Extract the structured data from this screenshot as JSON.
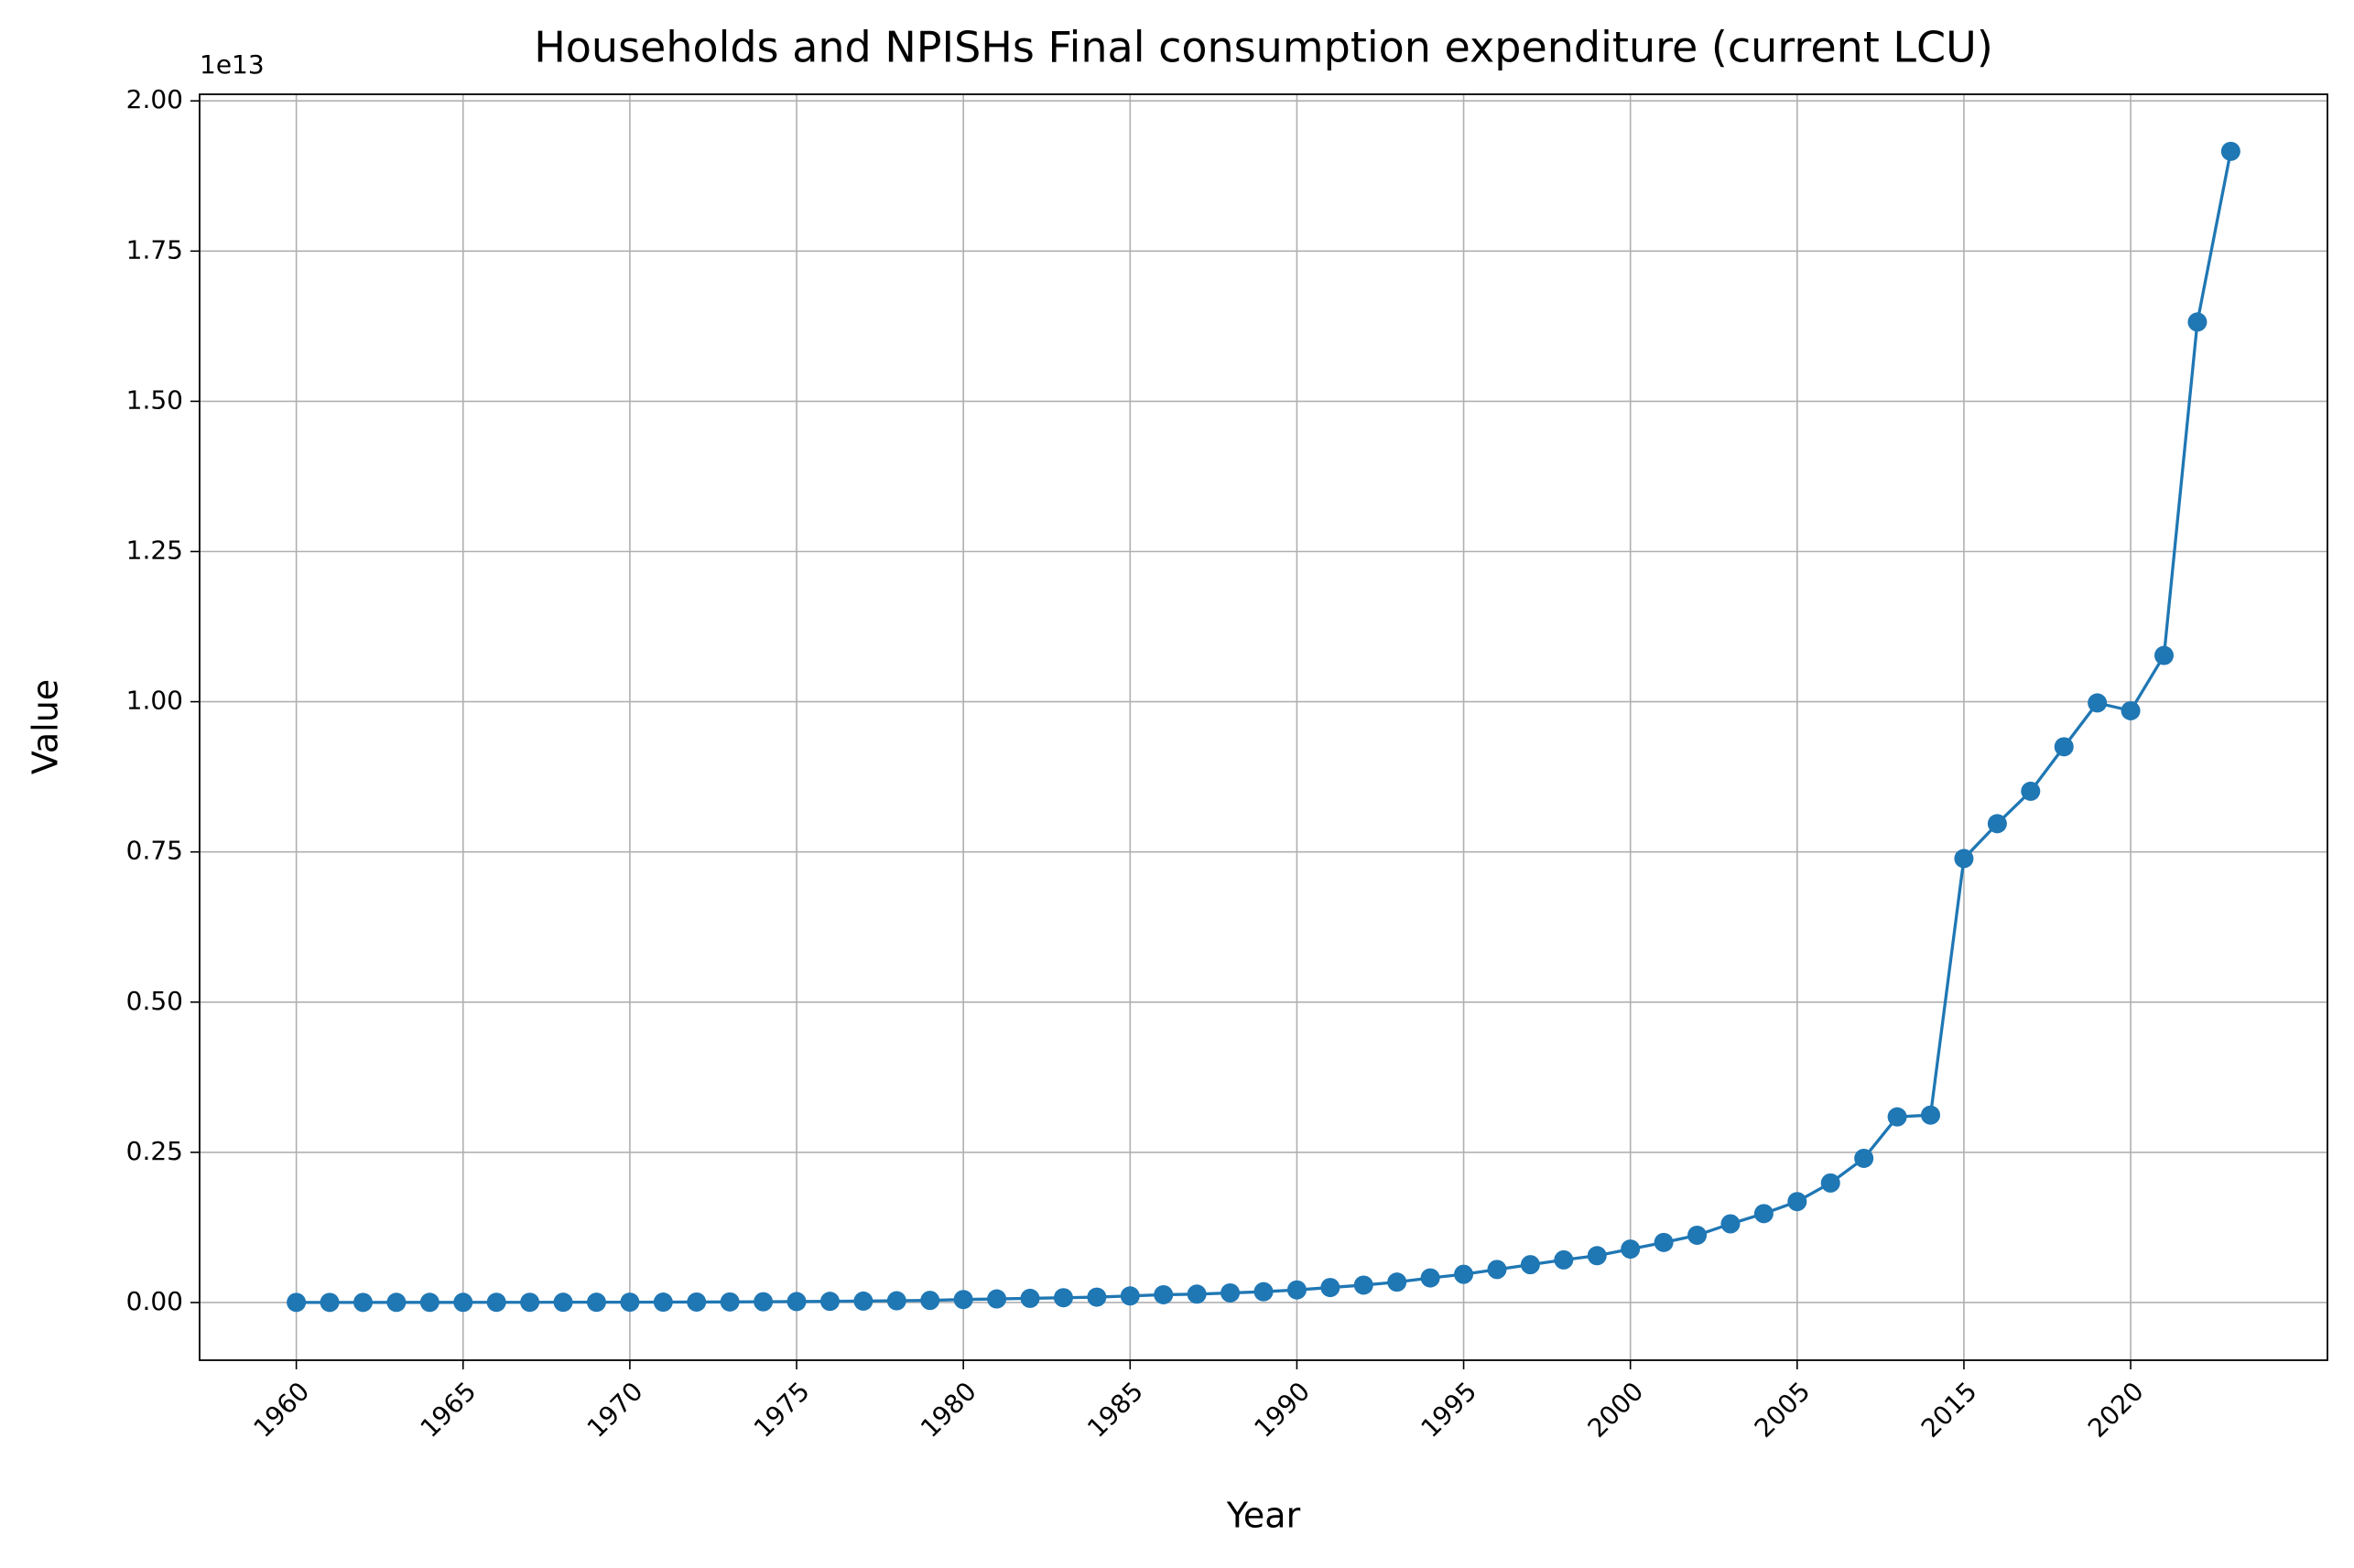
{
  "chart_data": {
    "type": "line",
    "title": "Households and NPISHs Final consumption expenditure (current LCU)",
    "x_label": "Year",
    "y_label": "Value",
    "y_offset_label": "1e13",
    "categories": [
      "1960",
      null,
      null,
      null,
      null,
      "1965",
      null,
      null,
      null,
      null,
      "1970",
      null,
      null,
      null,
      null,
      "1975",
      null,
      null,
      null,
      null,
      "1980",
      null,
      null,
      null,
      null,
      "1985",
      null,
      null,
      null,
      null,
      "1990",
      null,
      null,
      null,
      null,
      "1995",
      null,
      null,
      null,
      null,
      "2000",
      null,
      null,
      null,
      null,
      "2005",
      null,
      null,
      null,
      null,
      "2015",
      null,
      null,
      null,
      null,
      "2020",
      null,
      null,
      null
    ],
    "series": [
      {
        "name": "Value",
        "color": "#1f77b4",
        "values": [
          0.0002,
          0.0002,
          0.0002,
          0.0003,
          0.0003,
          0.0003,
          0.0004,
          0.0004,
          0.0005,
          0.0005,
          0.0006,
          0.0007,
          0.0008,
          0.001,
          0.0013,
          0.0016,
          0.002,
          0.0024,
          0.003,
          0.0036,
          0.005,
          0.006,
          0.007,
          0.008,
          0.009,
          0.011,
          0.013,
          0.014,
          0.016,
          0.018,
          0.021,
          0.025,
          0.029,
          0.034,
          0.041,
          0.047,
          0.055,
          0.063,
          0.071,
          0.078,
          0.089,
          0.1,
          0.112,
          0.131,
          0.148,
          0.168,
          0.199,
          0.24,
          0.309,
          0.312,
          0.739,
          0.797,
          0.851,
          0.925,
          0.998,
          0.985,
          1.077,
          1.632,
          1.916
        ]
      }
    ],
    "ylim": [
      -0.096,
      2.011
    ],
    "yticks": [
      {
        "value": 0,
        "label": "0.00"
      },
      {
        "value": 0.25,
        "label": "0.25"
      },
      {
        "value": 0.5,
        "label": "0.50"
      },
      {
        "value": 0.75,
        "label": "0.75"
      },
      {
        "value": 1,
        "label": "1.00"
      },
      {
        "value": 1.25,
        "label": "1.25"
      },
      {
        "value": 1.5,
        "label": "1.50"
      },
      {
        "value": 1.75,
        "label": "1.75"
      },
      {
        "value": 2,
        "label": "2.00"
      }
    ],
    "grid": true
  }
}
